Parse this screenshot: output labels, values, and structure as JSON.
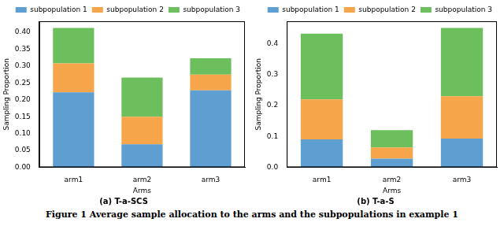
{
  "chart_data": [
    {
      "type": "bar",
      "title": "(a) T-a-SCS",
      "x_label": "Arms",
      "y_label": "Sampling Proportion",
      "categories": [
        "arm1",
        "arm2",
        "arm3"
      ],
      "series": [
        {
          "name": "subpopulation 1",
          "color": "#5f9ed1",
          "values": [
            0.222,
            0.068,
            0.228
          ]
        },
        {
          "name": "subpopulation 2",
          "color": "#f7a54a",
          "values": [
            0.086,
            0.082,
            0.047
          ]
        },
        {
          "name": "subpopulation 3",
          "color": "#6cbf5c",
          "values": [
            0.105,
            0.116,
            0.048
          ]
        }
      ],
      "stacked": true,
      "ylim": [
        0,
        0.433
      ],
      "yticks": [
        {
          "value": 0,
          "label": "0.00"
        },
        {
          "value": 0.05,
          "label": "0.05"
        },
        {
          "value": 0.1,
          "label": "0.10"
        },
        {
          "value": 0.15,
          "label": "0.15"
        },
        {
          "value": 0.2,
          "label": "0.20"
        },
        {
          "value": 0.25,
          "label": "0.25"
        },
        {
          "value": 0.3,
          "label": "0.30"
        },
        {
          "value": 0.35,
          "label": "0.35"
        },
        {
          "value": 0.4,
          "label": "0.40"
        }
      ],
      "grid": false,
      "legend": "top right"
    },
    {
      "type": "bar",
      "title": "(b) T-a-S",
      "x_label": "Arms",
      "y_label": "Sampling Proportion",
      "categories": [
        "arm1",
        "arm2",
        "arm3"
      ],
      "series": [
        {
          "name": "subpopulation 1",
          "color": "#5f9ed1",
          "values": [
            0.09,
            0.028,
            0.093
          ]
        },
        {
          "name": "subpopulation 2",
          "color": "#f7a54a",
          "values": [
            0.13,
            0.036,
            0.137
          ]
        },
        {
          "name": "subpopulation 3",
          "color": "#6cbf5c",
          "values": [
            0.213,
            0.056,
            0.221
          ]
        }
      ],
      "stacked": true,
      "ylim": [
        0,
        0.473
      ],
      "yticks": [
        {
          "value": 0,
          "label": "0.0"
        },
        {
          "value": 0.1,
          "label": "0.1"
        },
        {
          "value": 0.2,
          "label": "0.2"
        },
        {
          "value": 0.3,
          "label": "0.3"
        },
        {
          "value": 0.4,
          "label": "0.4"
        }
      ],
      "grid": false,
      "legend": "top right"
    }
  ],
  "figure_caption": "Figure 1    Average sample allocation to the arms and the subpopulations in example 1"
}
